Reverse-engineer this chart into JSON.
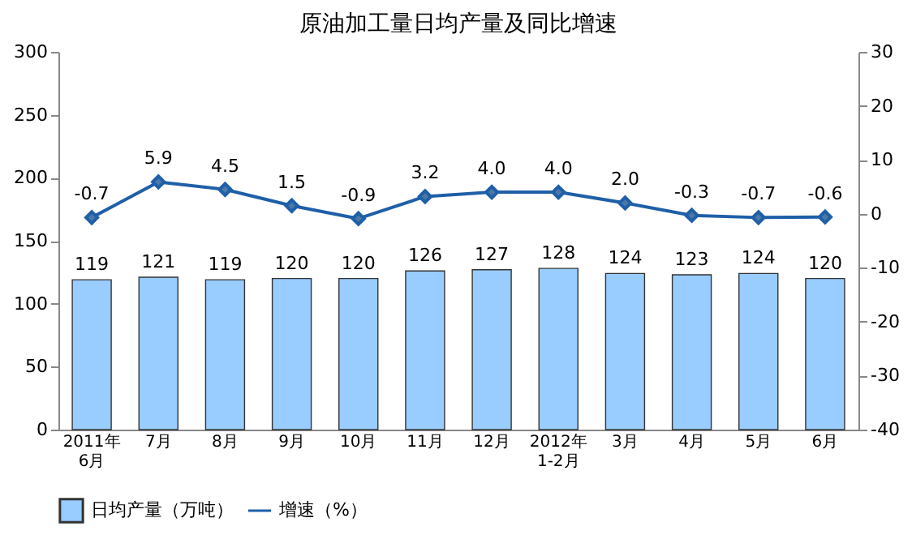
{
  "chart_data": {
    "type": "bar",
    "title": "原油加工量日均产量及同比增速",
    "categories": [
      "2011年\n6月",
      "7月",
      "8月",
      "9月",
      "10月",
      "11月",
      "12月",
      "2012年\n1-2月",
      "3月",
      "4月",
      "5月",
      "6月"
    ],
    "series": [
      {
        "name": "日均产量（万吨）",
        "color": "#99ccff",
        "values": [
          119,
          121,
          119,
          120,
          120,
          126,
          127,
          128,
          124,
          123,
          124,
          120
        ]
      },
      {
        "name": "增速（%）",
        "type": "line",
        "axis": "y2",
        "color": "#1f5fa8",
        "marker": "diamond",
        "values": [
          -0.7,
          5.9,
          4.5,
          1.5,
          -0.9,
          3.2,
          4.0,
          4.0,
          2.0,
          -0.3,
          -0.7,
          -0.6
        ],
        "value_labels": [
          "-0.7",
          "5.9",
          "4.5",
          "1.5",
          "-0.9",
          "3.2",
          "4.0",
          "4.0",
          "2.0",
          "-0.3",
          "-0.7",
          "-0.6"
        ]
      }
    ],
    "ylim": [
      0,
      300
    ],
    "yticks": [
      0,
      50,
      100,
      150,
      200,
      250,
      300
    ],
    "y2lim": [
      -40,
      30
    ],
    "y2ticks": [
      -40,
      -30,
      -20,
      -10,
      0,
      10,
      20,
      30
    ],
    "data_labels": true,
    "legend": "bottom",
    "grid": false
  }
}
